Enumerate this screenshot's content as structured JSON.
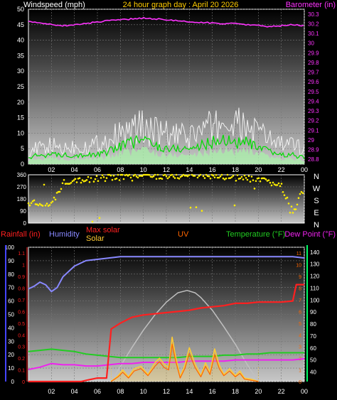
{
  "colors": {
    "wind": "#f0f0f0",
    "wind_avg": "#00dd00",
    "wind_light": "#a8f0a8",
    "barometer": "#ff33ff",
    "direction": "#ffee00",
    "rainfall": "#ff2020",
    "humidity": "#8888ff",
    "maxsolar": "#c0c0c0",
    "solar": "#ffcc33",
    "uv": "#ff6600",
    "temperature": "#22cc22",
    "dewpoint": "#ee22ee",
    "title": "#ffcc00",
    "axis": "#ffffff",
    "left_axis3": "#4444ff",
    "right_axis3": "#00ff66"
  },
  "header": {
    "left": "Windspeed (mph)",
    "center": "24 hour graph day : April 20 2026",
    "right": "Barometer (in)"
  },
  "compass": [
    "N",
    "W",
    "S",
    "E",
    "N"
  ],
  "legend3": {
    "rainfall": "Rainfall (in)",
    "humidity": "Humidity",
    "maxsolar": "Max solar",
    "solar": "Solar",
    "uv": "UV",
    "temperature": "Temperature (°F)",
    "dewpoint": "Dew Point (°F)"
  },
  "chart_data": [
    {
      "type": "line",
      "title": "24 hour graph day : April 20 2026",
      "x_ticks": [
        "02",
        "04",
        "06",
        "08",
        "10",
        "12",
        "14",
        "16",
        "18",
        "20",
        "22",
        "00"
      ],
      "left_axis": {
        "label": "Windspeed (mph)",
        "ticks": [
          0,
          5,
          10,
          15,
          20,
          25,
          30,
          35,
          40,
          45,
          50
        ],
        "range": [
          0,
          50
        ]
      },
      "right_axis": {
        "label": "Barometer (in)",
        "ticks": [
          "28.8",
          "28.9",
          "29",
          "29.1",
          "29.2",
          "29.3",
          "29.4",
          "29.5",
          "29.6",
          "29.7",
          "29.8",
          "29.9",
          "30",
          "30.1",
          "30.2",
          "30.3"
        ],
        "range": [
          28.75,
          30.35
        ]
      },
      "series": [
        {
          "name": "Windspeed (mph)",
          "kind": "gust",
          "hours": [
            0,
            1,
            2,
            3,
            4,
            5,
            6,
            7,
            8,
            9,
            10,
            11,
            12,
            13,
            14,
            15,
            16,
            17,
            18,
            19,
            20,
            21,
            22,
            23,
            24
          ],
          "values": [
            6,
            7,
            8,
            7,
            8,
            8,
            9,
            11,
            13,
            15,
            17,
            14,
            13,
            12,
            12,
            15,
            16,
            18,
            17,
            16,
            14,
            11,
            9,
            8,
            7
          ]
        },
        {
          "name": "Windspeed (mph)",
          "kind": "average",
          "hours": [
            0,
            1,
            2,
            3,
            4,
            5,
            6,
            7,
            8,
            9,
            10,
            11,
            12,
            13,
            14,
            15,
            16,
            17,
            18,
            19,
            20,
            21,
            22,
            23,
            24
          ],
          "values": [
            2,
            3,
            3,
            3,
            3,
            3,
            3,
            4,
            6,
            7,
            8,
            6,
            5,
            5,
            5,
            6,
            7,
            8,
            7,
            7,
            5,
            4,
            3,
            3,
            2
          ]
        },
        {
          "name": "Barometer (in)",
          "hours": [
            0,
            1,
            2,
            3,
            4,
            5,
            6,
            7,
            8,
            9,
            10,
            11,
            12,
            13,
            14,
            15,
            16,
            17,
            18,
            19,
            20,
            21,
            22,
            23,
            24
          ],
          "values": [
            30.22,
            30.21,
            30.19,
            30.18,
            30.19,
            30.2,
            30.22,
            30.23,
            30.24,
            30.25,
            30.26,
            30.25,
            30.24,
            30.23,
            30.22,
            30.21,
            30.21,
            30.2,
            30.2,
            30.19,
            30.18,
            30.17,
            30.18,
            30.19,
            30.18
          ]
        }
      ]
    },
    {
      "type": "scatter",
      "series_label": "Wind direction",
      "y_ticks": [
        0,
        90,
        180,
        270,
        360
      ],
      "range": [
        0,
        360
      ],
      "hours": [
        0,
        1,
        2,
        3,
        4,
        5,
        6,
        7,
        8,
        9,
        10,
        11,
        12,
        13,
        14,
        15,
        16,
        17,
        18,
        19,
        20,
        21,
        22,
        23,
        24
      ],
      "values": [
        150,
        140,
        130,
        300,
        330,
        320,
        330,
        340,
        345,
        340,
        355,
        350,
        350,
        350,
        355,
        360,
        355,
        345,
        340,
        330,
        320,
        300,
        280,
        80,
        260
      ]
    },
    {
      "type": "line",
      "x_ticks": [
        "02",
        "04",
        "06",
        "08",
        "10",
        "12",
        "14",
        "16",
        "18",
        "20",
        "22",
        "00"
      ],
      "left_axis": {
        "ticks": [
          0,
          10,
          20,
          30,
          40,
          50,
          60,
          70,
          80,
          90,
          100
        ],
        "range": [
          0,
          100
        ]
      },
      "rain_axis": {
        "ticks": [
          "0",
          "0.1",
          "0.2",
          "0.3",
          "0.4",
          "0.5",
          "0.6",
          "0.7",
          "0.8",
          "0.9",
          "1",
          "1.1"
        ],
        "range": [
          0,
          1.15
        ]
      },
      "uv_axis": {
        "ticks": [
          "0",
          "1",
          "2",
          "3",
          "4",
          "5",
          "6",
          "7",
          "8",
          "9",
          "10",
          "11"
        ],
        "range": [
          0,
          11.5
        ]
      },
      "right_axis": {
        "ticks": [
          40,
          50,
          60,
          70,
          80,
          90,
          100,
          110,
          120,
          130,
          140
        ],
        "range": [
          32,
          144
        ]
      },
      "series": [
        {
          "name": "Humidity",
          "hours": [
            0,
            0.5,
            1,
            1.5,
            2,
            2.5,
            3,
            4,
            5,
            6,
            7,
            8,
            10,
            12,
            14,
            16,
            18,
            20,
            22,
            23,
            24
          ],
          "values": [
            69,
            71,
            74,
            72,
            67,
            70,
            78,
            86,
            90,
            91,
            92,
            93,
            93,
            93,
            93,
            93,
            93,
            93,
            93,
            93,
            92
          ]
        },
        {
          "name": "Rainfall (in)",
          "hours": [
            0,
            4.6,
            5,
            6,
            6.8,
            7.2,
            8,
            9,
            10,
            11,
            12,
            13,
            14,
            15,
            16,
            17,
            18,
            19,
            20,
            21,
            22,
            23,
            23.3,
            24
          ],
          "values": [
            0,
            0,
            0.01,
            0.03,
            0.03,
            0.45,
            0.5,
            0.55,
            0.57,
            0.58,
            0.59,
            0.6,
            0.61,
            0.63,
            0.64,
            0.65,
            0.67,
            0.67,
            0.68,
            0.68,
            0.68,
            0.69,
            0.83,
            0.83
          ]
        },
        {
          "name": "Max solar",
          "hours": [
            7.2,
            8,
            9,
            10,
            11,
            12,
            13,
            13.8,
            14.5,
            15,
            16,
            17,
            18,
            19,
            20
          ],
          "values": [
            0,
            1.3,
            2.9,
            4.4,
            5.7,
            6.8,
            7.6,
            7.8,
            7.6,
            7.2,
            6.1,
            4.7,
            3.2,
            1.5,
            0
          ]
        },
        {
          "name": "Solar",
          "hours": [
            7.2,
            7.8,
            8.2,
            8.7,
            9.2,
            9.8,
            10.4,
            11,
            11.4,
            11.8,
            12.2,
            12.5,
            12.8,
            13.2,
            13.6,
            14,
            14.5,
            15,
            15.4,
            15.8,
            16.2,
            16.6,
            17,
            17.5,
            18,
            18.4,
            18.8,
            19.4,
            20
          ],
          "values": [
            0,
            0.5,
            1,
            0.4,
            1.1,
            1.3,
            0.6,
            1.6,
            2,
            1.5,
            1.2,
            3.8,
            2.2,
            0.4,
            1.4,
            2.9,
            1.5,
            0.5,
            1.6,
            0.8,
            2.8,
            1.4,
            0.6,
            1.1,
            0.5,
            0.9,
            0.3,
            0.2,
            0
          ]
        },
        {
          "name": "UV",
          "hours": [
            7.2,
            7.8,
            8.2,
            8.7,
            9.2,
            9.8,
            10.4,
            11,
            11.4,
            11.8,
            12.2,
            12.5,
            12.8,
            13.2,
            13.6,
            14,
            14.5,
            15,
            15.4,
            15.8,
            16.2,
            16.6,
            17,
            17.5,
            18,
            18.4,
            18.8,
            19.4,
            20
          ],
          "values": [
            0,
            0.4,
            0.8,
            0.3,
            0.9,
            1.1,
            0.5,
            1.3,
            1.7,
            1.2,
            1,
            3.2,
            1.8,
            0.3,
            1.1,
            2.4,
            1.2,
            0.4,
            1.3,
            0.6,
            2.3,
            1.1,
            0.5,
            0.9,
            0.4,
            0.7,
            0.2,
            0.1,
            0
          ]
        },
        {
          "name": "Temperature (°F)",
          "hours": [
            0,
            1,
            2,
            3,
            4,
            5,
            6,
            7,
            8,
            9,
            10,
            11,
            12,
            13,
            14,
            15,
            16,
            17,
            18,
            19,
            20,
            21,
            22,
            23,
            24
          ],
          "values": [
            57,
            58,
            59,
            58,
            57,
            55,
            54,
            53,
            52,
            52,
            52,
            52,
            52,
            52,
            53,
            53,
            53,
            54,
            54,
            55,
            55,
            56,
            56,
            56,
            56
          ]
        },
        {
          "name": "Dew Point (°F)",
          "hours": [
            0,
            1,
            2,
            3,
            4,
            5,
            6,
            7,
            8,
            9,
            10,
            11,
            12,
            13,
            14,
            15,
            16,
            17,
            18,
            19,
            20,
            21,
            22,
            23,
            24
          ],
          "values": [
            42,
            44,
            47,
            46,
            46,
            45,
            45,
            46,
            47,
            47,
            48,
            48,
            48,
            48,
            49,
            49,
            49,
            49,
            50,
            50,
            50,
            50,
            50,
            50,
            51
          ]
        }
      ]
    }
  ]
}
